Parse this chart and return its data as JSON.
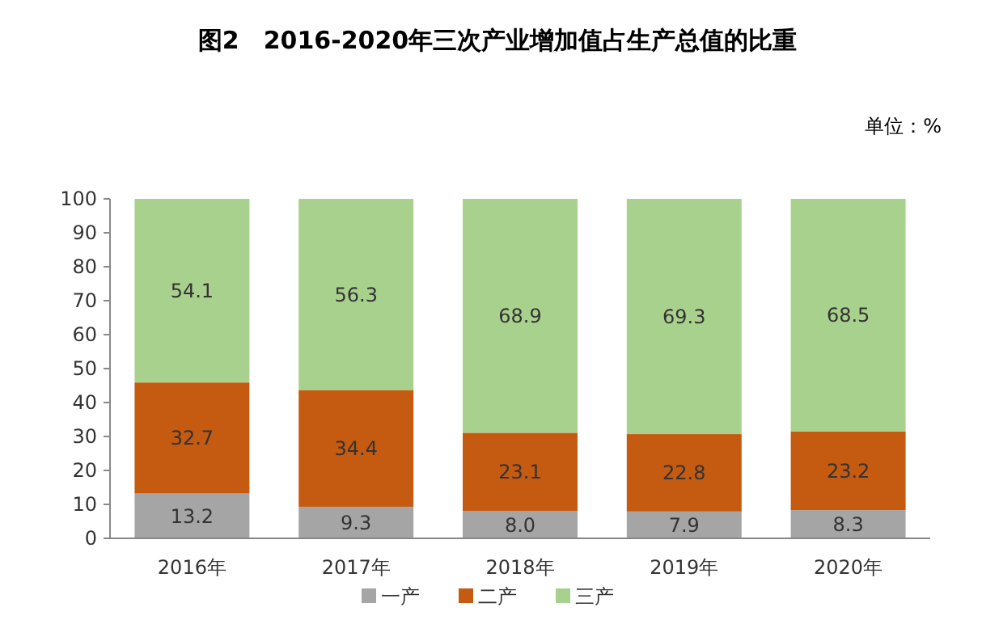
{
  "chart_data": {
    "type": "bar",
    "title": "图2　2016-2020年三次产业增加值占生产总值的比重",
    "annotations": [
      "单位：%"
    ],
    "categories": [
      "2016年",
      "2017年",
      "2018年",
      "2019年",
      "2020年"
    ],
    "series": [
      {
        "name": "一产",
        "color": "#a5a5a5",
        "values": [
          13.2,
          9.3,
          8.0,
          7.9,
          8.3
        ],
        "value_labels": [
          "13.2",
          "9.3",
          "8.0",
          "7.9",
          "8.3"
        ]
      },
      {
        "name": "二产",
        "color": "#c55a11",
        "values": [
          32.7,
          34.4,
          23.1,
          22.8,
          23.2
        ],
        "value_labels": [
          "32.7",
          "34.4",
          "23.1",
          "22.8",
          "23.2"
        ]
      },
      {
        "name": "三产",
        "color": "#a9d18e",
        "values": [
          54.1,
          56.3,
          68.9,
          69.3,
          68.5
        ],
        "value_labels": [
          "54.1",
          "56.3",
          "68.9",
          "69.3",
          "68.5"
        ]
      }
    ],
    "stacked": true,
    "ylim": [
      0,
      100
    ],
    "yticks": [
      0,
      10,
      20,
      30,
      40,
      50,
      60,
      70,
      80,
      90,
      100
    ],
    "legend": "bottom"
  }
}
